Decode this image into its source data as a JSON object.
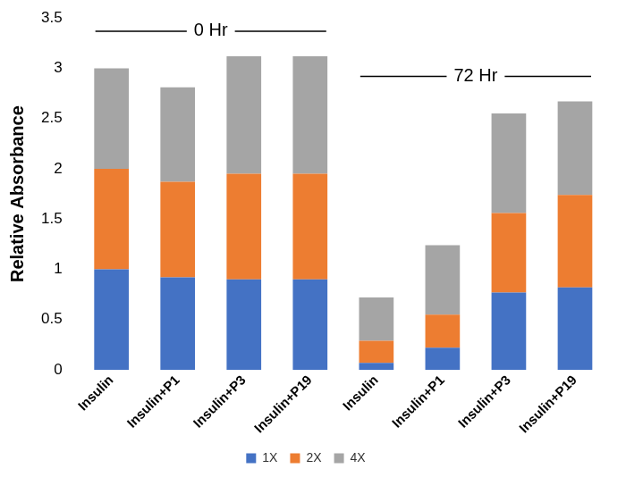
{
  "chart_data": {
    "type": "bar",
    "stacked": true,
    "categories": [
      "Insulin",
      "Insulin+P1",
      "Insulin+P3",
      "Insulin+P19",
      "Insulin",
      "Insulin+P1",
      "Insulin+P3",
      "Insulin+P19"
    ],
    "series": [
      {
        "name": "1X",
        "color": "#4472c4",
        "values": [
          1.0,
          0.92,
          0.9,
          0.9,
          0.07,
          0.22,
          0.77,
          0.82
        ]
      },
      {
        "name": "2X",
        "color": "#ed7d31",
        "values": [
          1.0,
          0.95,
          1.05,
          1.05,
          0.22,
          0.33,
          0.79,
          0.92
        ]
      },
      {
        "name": "4X",
        "color": "#a5a5a5",
        "values": [
          1.0,
          0.94,
          1.17,
          1.17,
          0.43,
          0.69,
          0.99,
          0.93
        ]
      }
    ],
    "y_label": "Relative Absorbance",
    "annotations": [
      "0 Hr",
      "72 Hr"
    ],
    "ylim": [
      0,
      3.5
    ],
    "yticks": [
      0,
      0.5,
      1,
      1.5,
      2,
      2.5,
      3,
      3.5
    ],
    "grid": false,
    "legend": "bottom"
  }
}
